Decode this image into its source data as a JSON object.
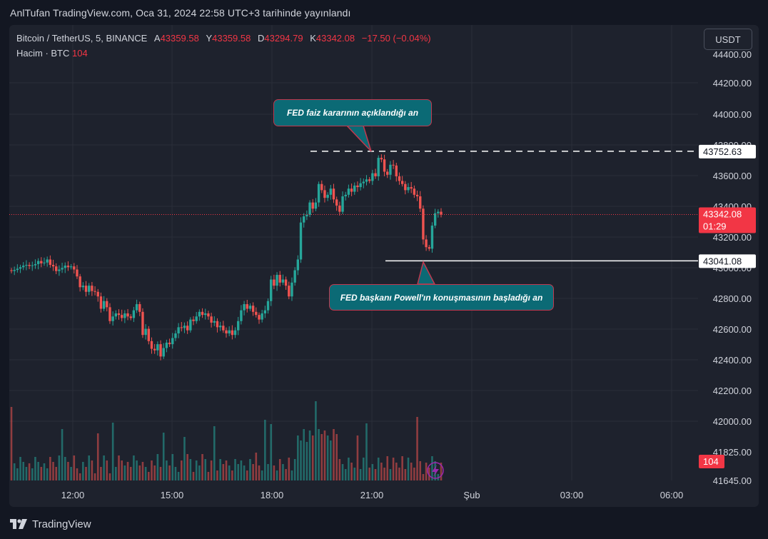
{
  "header": "AnlTufan TradingView.com, Oca 31, 2024 22:58 UTC+3 tarihinde yayınlandı",
  "legend": {
    "symbol": "Bitcoin / TetherUS, 5, BINANCE",
    "open_label": "A",
    "open": "43359.58",
    "high_label": "Y",
    "high": "43359.58",
    "low_label": "D",
    "low": "43294.79",
    "close_label": "K",
    "close": "43342.08",
    "change": "−17.50 (−0.04%)",
    "volume_label": "Hacim · BTC",
    "volume": "104"
  },
  "currency_button": "USDT",
  "annotations": {
    "top_callout": "FED faiz kararının açıklandığı an",
    "bottom_callout": "FED başkanı Powell'ın konuşmasının başladığı an"
  },
  "footer_brand": "TradingView",
  "colors": {
    "up": "#26a69a",
    "down": "#ef5350",
    "price_tag": "#f23645",
    "callout_bg": "#0b6a75",
    "callout_border": "#c0394f",
    "background": "#131722",
    "panel": "#1e222d"
  },
  "chart_data": {
    "type": "candlestick",
    "title": "Bitcoin / TetherUS, 5, BINANCE",
    "xlabel": "",
    "ylabel": "",
    "x_tick_labels": [
      "12:00",
      "15:00",
      "18:00",
      "21:00",
      "Şub",
      "03:00",
      "06:00"
    ],
    "y_tick_labels": [
      "44400.00",
      "44200.00",
      "44000.00",
      "43800.00",
      "43600.00",
      "43400.00",
      "43200.00",
      "43000.00",
      "42800.00",
      "42600.00",
      "42400.00",
      "42200.00",
      "42000.00",
      "41825.00",
      "41645.00"
    ],
    "ylim": [
      41645,
      44420
    ],
    "price_labels": {
      "current": "43342.08",
      "countdown": "01:29",
      "high_line": "43752.63",
      "low_line": "43041.08",
      "volume_tag": "104"
    },
    "levels": {
      "high": 43752.63,
      "low": 43041.08,
      "current": 43342.08
    },
    "grid": true,
    "candle_closes": [
      42975,
      42982,
      42990,
      43000,
      43010,
      43015,
      43008,
      43012,
      43020,
      43040,
      43025,
      43030,
      43050,
      43015,
      43005,
      42975,
      42985,
      42995,
      43010,
      43000,
      43005,
      42985,
      42940,
      42870,
      42880,
      42840,
      42880,
      42845,
      42840,
      42810,
      42730,
      42780,
      42740,
      42650,
      42680,
      42700,
      42690,
      42670,
      42700,
      42680,
      42670,
      42720,
      42760,
      42710,
      42560,
      42600,
      42520,
      42470,
      42460,
      42500,
      42420,
      42475,
      42510,
      42500,
      42540,
      42570,
      42610,
      42605,
      42620,
      42590,
      42660,
      42650,
      42680,
      42710,
      42690,
      42700,
      42680,
      42640,
      42650,
      42610,
      42620,
      42590,
      42570,
      42590,
      42560,
      42590,
      42650,
      42720,
      42760,
      42730,
      42750,
      42710,
      42690,
      42660,
      42700,
      42720,
      42780,
      42920,
      42880,
      42950,
      42900,
      42920,
      42880,
      42810,
      42900,
      42980,
      43050,
      43290,
      43330,
      43340,
      43420,
      43380,
      43420,
      43540,
      43500,
      43450,
      43470,
      43510,
      43440,
      43400,
      43360,
      43460,
      43470,
      43510,
      43490,
      43530,
      43520,
      43545,
      43555,
      43570,
      43560,
      43610,
      43590,
      43710,
      43700,
      43620,
      43600,
      43665,
      43660,
      43590,
      43560,
      43540,
      43500,
      43520,
      43510,
      43470,
      43460,
      43380,
      43180,
      43130,
      43120,
      43270,
      43350,
      43360,
      43342.08
    ]
  }
}
